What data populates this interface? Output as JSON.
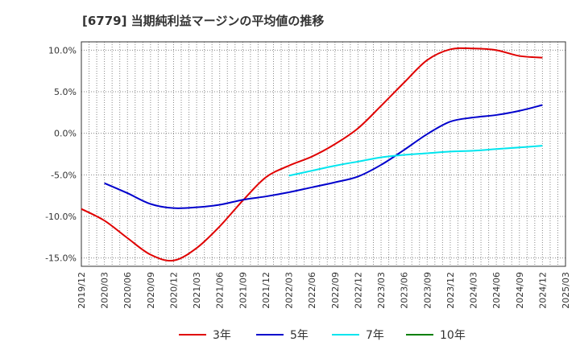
{
  "chart_data": {
    "type": "line",
    "title": "[6779]  当期純利益マージンの平均値の推移",
    "xlabel": "",
    "ylabel": "",
    "ylim": [
      -16,
      11
    ],
    "yticks": [
      10,
      5,
      0,
      -5,
      -10,
      -15
    ],
    "ytick_labels": [
      "10.0%",
      "5.0%",
      "0.0%",
      "-5.0%",
      "-10.0%",
      "-15.0%"
    ],
    "x_range": [
      "2019/12",
      "2025/03"
    ],
    "xtick_labels": [
      "2019/12",
      "2020/03",
      "2020/06",
      "2020/09",
      "2020/12",
      "2021/03",
      "2021/06",
      "2021/09",
      "2021/12",
      "2022/03",
      "2022/06",
      "2022/09",
      "2022/12",
      "2023/03",
      "2023/06",
      "2023/09",
      "2023/12",
      "2024/03",
      "2024/06",
      "2024/09",
      "2024/12",
      "2025/03"
    ],
    "grid": true,
    "legend_position": "bottom",
    "series": [
      {
        "name": "3年",
        "color": "#e00000",
        "x": [
          "2019/12",
          "2020/03",
          "2020/06",
          "2020/09",
          "2020/12",
          "2021/03",
          "2021/06",
          "2021/09",
          "2021/12",
          "2022/03",
          "2022/06",
          "2022/09",
          "2022/12",
          "2023/03",
          "2023/06",
          "2023/09",
          "2023/12",
          "2024/03",
          "2024/06",
          "2024/09",
          "2024/12"
        ],
        "values": [
          -9.1,
          -10.5,
          -12.6,
          -14.6,
          -15.3,
          -13.8,
          -11.2,
          -8.1,
          -5.3,
          -3.9,
          -2.8,
          -1.3,
          0.6,
          3.3,
          6.1,
          8.8,
          10.1,
          10.2,
          10.0,
          9.3,
          9.1
        ]
      },
      {
        "name": "5年",
        "color": "#0000cc",
        "x": [
          "2020/03",
          "2020/06",
          "2020/09",
          "2020/12",
          "2021/03",
          "2021/06",
          "2021/09",
          "2021/12",
          "2022/03",
          "2022/06",
          "2022/09",
          "2022/12",
          "2023/03",
          "2023/06",
          "2023/09",
          "2023/12",
          "2024/03",
          "2024/06",
          "2024/09",
          "2024/12"
        ],
        "values": [
          -6.0,
          -7.2,
          -8.5,
          -9.0,
          -8.9,
          -8.6,
          -8.0,
          -7.6,
          -7.1,
          -6.5,
          -5.9,
          -5.2,
          -3.8,
          -2.0,
          -0.1,
          1.4,
          1.9,
          2.2,
          2.7,
          3.4
        ]
      },
      {
        "name": "7年",
        "color": "#00e5ee",
        "x": [
          "2022/03",
          "2022/06",
          "2022/09",
          "2022/12",
          "2023/03",
          "2023/06",
          "2023/09",
          "2023/12",
          "2024/03",
          "2024/06",
          "2024/09",
          "2024/12"
        ],
        "values": [
          -5.1,
          -4.5,
          -3.9,
          -3.4,
          -2.9,
          -2.6,
          -2.4,
          -2.2,
          -2.1,
          -1.9,
          -1.7,
          -1.5
        ]
      },
      {
        "name": "10年",
        "color": "#008000",
        "x": [],
        "values": []
      }
    ]
  }
}
